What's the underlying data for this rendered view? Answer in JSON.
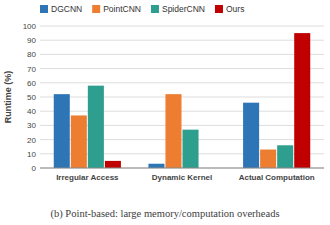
{
  "chart_data": {
    "type": "bar",
    "title": "(b) Point-based: large memory/computation overheads",
    "y_label": "Runtime (%)",
    "categories": [
      "Irregular Access",
      "Dynamic Kernel",
      "Actual Computation"
    ],
    "series": [
      {
        "name": "DGCNN",
        "color": "#2E75B6",
        "values": [
          52,
          3,
          46
        ]
      },
      {
        "name": "PointCNN",
        "color": "#ED7D31",
        "values": [
          37,
          52,
          13
        ]
      },
      {
        "name": "SpiderCNN",
        "color": "#2E9E8E",
        "values": [
          58,
          27,
          16
        ]
      },
      {
        "name": "Ours",
        "color": "#C00000",
        "values": [
          5,
          0,
          95
        ]
      }
    ],
    "ylim": [
      0,
      100
    ],
    "yticks": [
      0,
      10,
      20,
      30,
      40,
      50,
      60,
      70,
      80,
      90,
      100
    ],
    "grid": true,
    "legend": "top"
  }
}
